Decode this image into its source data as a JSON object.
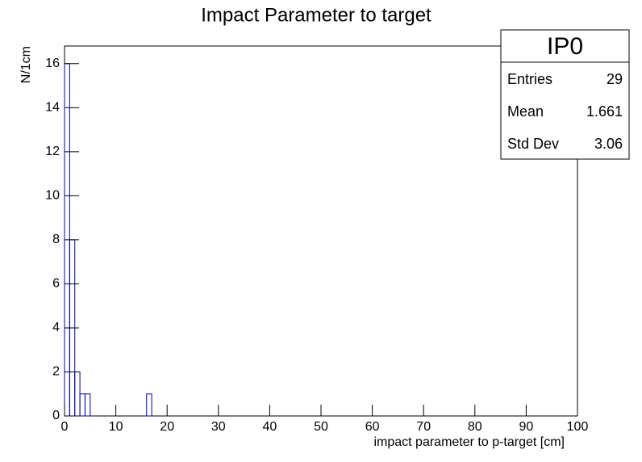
{
  "chart_data": {
    "type": "histogram",
    "title": "Impact Parameter to target",
    "xlabel": "impact parameter to p-target   [cm]",
    "ylabel": "N/1cm",
    "bins": [
      0,
      1,
      2,
      3,
      4,
      5,
      6,
      7,
      8,
      9,
      10,
      11,
      12,
      13,
      14,
      15,
      16,
      17,
      18,
      19,
      20,
      21,
      22,
      23,
      24,
      25,
      26,
      27,
      28,
      29,
      30,
      31,
      32,
      33,
      34,
      35,
      36,
      37,
      38,
      39,
      40,
      41,
      42,
      43,
      44,
      45,
      46,
      47,
      48,
      49,
      50,
      51,
      52,
      53,
      54,
      55,
      56,
      57,
      58,
      59,
      60,
      61,
      62,
      63,
      64,
      65,
      66,
      67,
      68,
      69,
      70,
      71,
      72,
      73,
      74,
      75,
      76,
      77,
      78,
      79,
      80,
      81,
      82,
      83,
      84,
      85,
      86,
      87,
      88,
      89,
      90,
      91,
      92,
      93,
      94,
      95,
      96,
      97,
      98,
      99,
      100
    ],
    "values": [
      16,
      8,
      2,
      1,
      1,
      0,
      0,
      0,
      0,
      0,
      0,
      0,
      0,
      0,
      0,
      0,
      1,
      0,
      0,
      0,
      0,
      0,
      0,
      0,
      0,
      0,
      0,
      0,
      0,
      0,
      0,
      0,
      0,
      0,
      0,
      0,
      0,
      0,
      0,
      0,
      0,
      0,
      0,
      0,
      0,
      0,
      0,
      0,
      0,
      0,
      0,
      0,
      0,
      0,
      0,
      0,
      0,
      0,
      0,
      0,
      0,
      0,
      0,
      0,
      0,
      0,
      0,
      0,
      0,
      0,
      0,
      0,
      0,
      0,
      0,
      0,
      0,
      0,
      0,
      0,
      0,
      0,
      0,
      0,
      0,
      0,
      0,
      0,
      0,
      0,
      0,
      0,
      0,
      0,
      0,
      0,
      0,
      0,
      0,
      0
    ],
    "color": "#000099",
    "xlim": [
      0,
      100
    ],
    "xticks": [
      0,
      10,
      20,
      30,
      40,
      50,
      60,
      70,
      80,
      90,
      100
    ],
    "ylim": [
      0,
      16.8
    ],
    "yticks": [
      0,
      2,
      4,
      6,
      8,
      10,
      12,
      14,
      16
    ],
    "stats": {
      "title": "IP0",
      "rows": [
        {
          "label": "Entries",
          "value": 29
        },
        {
          "label": "Mean",
          "value": 1.661
        },
        {
          "label": "Std Dev",
          "value": 3.06
        }
      ]
    }
  }
}
